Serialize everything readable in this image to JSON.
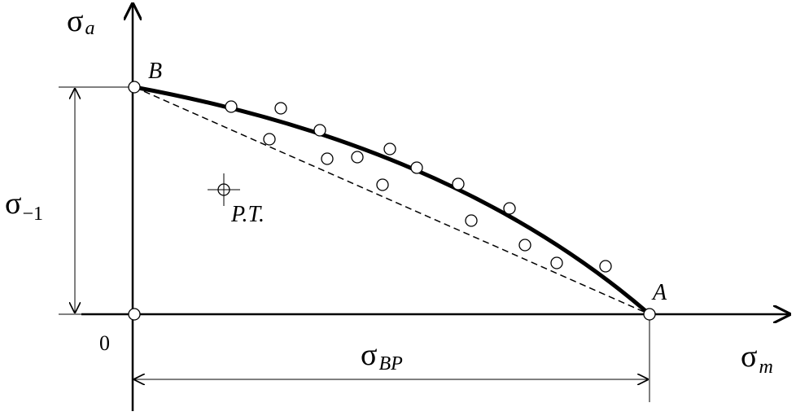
{
  "axes": {
    "y_label": {
      "symbol": "σ",
      "subscript": "a"
    },
    "x_label": {
      "symbol": "σ",
      "subscript": "m"
    }
  },
  "points": {
    "b": "B",
    "a": "A",
    "origin": "0"
  },
  "annotations": {
    "endurance_limit": {
      "symbol": "σ",
      "subscript": "−1"
    },
    "ultimate_strength": {
      "symbol": "σ",
      "subscript": "BP"
    },
    "test_point": "P.T."
  }
}
